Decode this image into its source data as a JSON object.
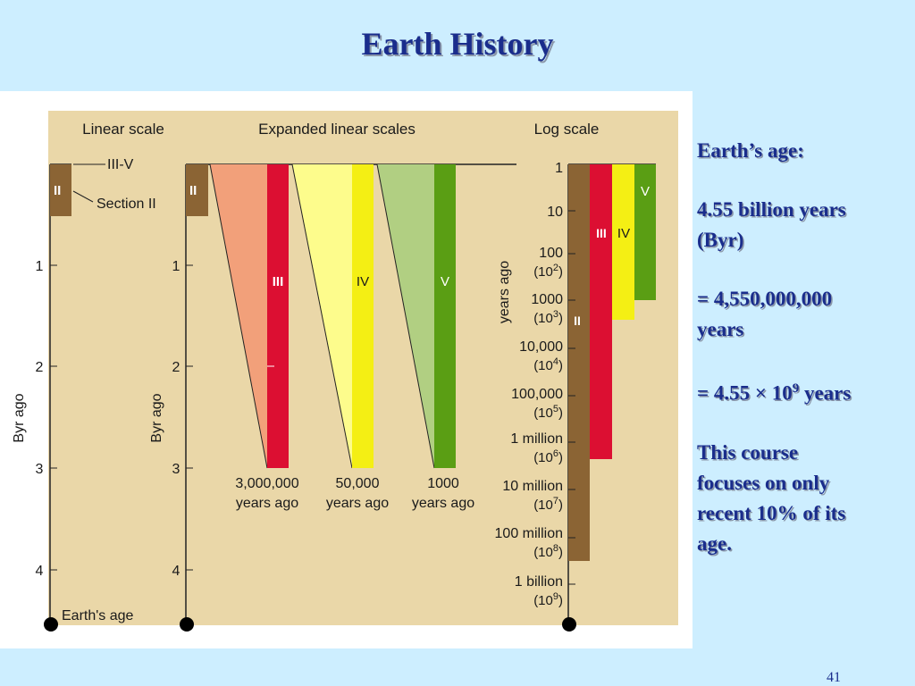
{
  "title": "Earth History",
  "slide_number": "41",
  "side_text": {
    "line1": "Earth’s age:",
    "line2a": "4.55 billion years",
    "line2b": "(Byr)",
    "line3a": "= 4,550,000,000",
    "line3b": "years",
    "line4_prefix": "= 4.55 × 10",
    "line4_exp": "9",
    "line4_suffix": " years",
    "line5a": "This course",
    "line5b": "focuses on only",
    "line5c": "recent 10% of its",
    "line5d": "age."
  },
  "figure": {
    "colors": {
      "background": "#ead7a8",
      "section_II": "#8b6434",
      "section_III": "#dc0f32",
      "section_IV": "#f4ef14",
      "section_V": "#5a9e14",
      "wedge_III": "#f2a07a",
      "wedge_IV": "#fdfc8c",
      "wedge_V": "#b1cf82"
    },
    "headers": {
      "linear": "Linear scale",
      "expanded": "Expanded linear scales",
      "log": "Log scale"
    },
    "linear_scale": {
      "label_III_V": "III-V",
      "label_section_II": "Section II",
      "section_II": "II",
      "ticks": [
        "1",
        "2",
        "3",
        "4"
      ],
      "axis_label": "Byr ago",
      "bottom_label": "Earth's age"
    },
    "expanded_scales": {
      "section_II": "II",
      "ticks": [
        "1",
        "2",
        "3",
        "4"
      ],
      "axis_label": "Byr ago",
      "III": {
        "label": "III",
        "caption1": "3,000,000",
        "caption2": "years ago"
      },
      "IV": {
        "label": "IV",
        "caption1": "50,000",
        "caption2": "years ago"
      },
      "V": {
        "label": "V",
        "caption1": "1000",
        "caption2": "years ago"
      }
    },
    "log_scale": {
      "axis_label": "years ago",
      "ticks": [
        {
          "value": "1",
          "power": ""
        },
        {
          "value": "10",
          "power": ""
        },
        {
          "value": "100",
          "power": "(10",
          "exp": "2"
        },
        {
          "value": "1000",
          "power": "(10",
          "exp": "3"
        },
        {
          "value": "10,000",
          "power": "(10",
          "exp": "4"
        },
        {
          "value": "100,000",
          "power": "(10",
          "exp": "5"
        },
        {
          "value": "1 million",
          "power": "(10",
          "exp": "6"
        },
        {
          "value": "10 million",
          "power": "(10",
          "exp": "7"
        },
        {
          "value": "100 million",
          "power": "(10",
          "exp": "8"
        },
        {
          "value": "1 billion",
          "power": "(10",
          "exp": "9"
        }
      ],
      "labels": {
        "II": "II",
        "III": "III",
        "IV": "IV",
        "V": "V"
      }
    }
  }
}
